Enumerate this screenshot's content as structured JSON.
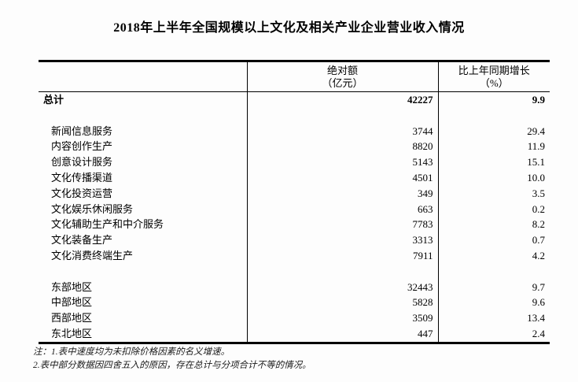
{
  "title": "2018年上半年全国规模以上文化及相关产业企业营业收入情况",
  "table": {
    "header": {
      "absolute": {
        "line1": "绝对额",
        "line2": "（亿元）"
      },
      "growth": {
        "line1": "比上年同期增长",
        "line2": "（%）"
      }
    },
    "rows": [
      {
        "label": "总计",
        "absolute": "42227",
        "growth": "9.9"
      },
      {
        "label": "",
        "absolute": "",
        "growth": ""
      },
      {
        "label": "新闻信息服务",
        "absolute": "3744",
        "growth": "29.4"
      },
      {
        "label": "内容创作生产",
        "absolute": "8820",
        "growth": "11.9"
      },
      {
        "label": "创意设计服务",
        "absolute": "5143",
        "growth": "15.1"
      },
      {
        "label": "文化传播渠道",
        "absolute": "4501",
        "growth": "10.0"
      },
      {
        "label": "文化投资运营",
        "absolute": "349",
        "growth": "3.5"
      },
      {
        "label": "文化娱乐休闲服务",
        "absolute": "663",
        "growth": "0.2"
      },
      {
        "label": "文化辅助生产和中介服务",
        "absolute": "7783",
        "growth": "8.2"
      },
      {
        "label": "文化装备生产",
        "absolute": "3313",
        "growth": "0.7"
      },
      {
        "label": "文化消费终端生产",
        "absolute": "7911",
        "growth": "4.2"
      },
      {
        "label": "",
        "absolute": "",
        "growth": ""
      },
      {
        "label": "东部地区",
        "absolute": "32443",
        "growth": "9.7"
      },
      {
        "label": "中部地区",
        "absolute": "5828",
        "growth": "9.6"
      },
      {
        "label": "西部地区",
        "absolute": "3509",
        "growth": "13.4"
      },
      {
        "label": "东北地区",
        "absolute": "447",
        "growth": "2.4"
      }
    ]
  },
  "notes": {
    "line1": "注：1.表中速度均为未扣除价格因素的名义增速。",
    "line2": "2.表中部分数据因四舍五入的原因，存在总计与分项合计不等的情况。"
  }
}
